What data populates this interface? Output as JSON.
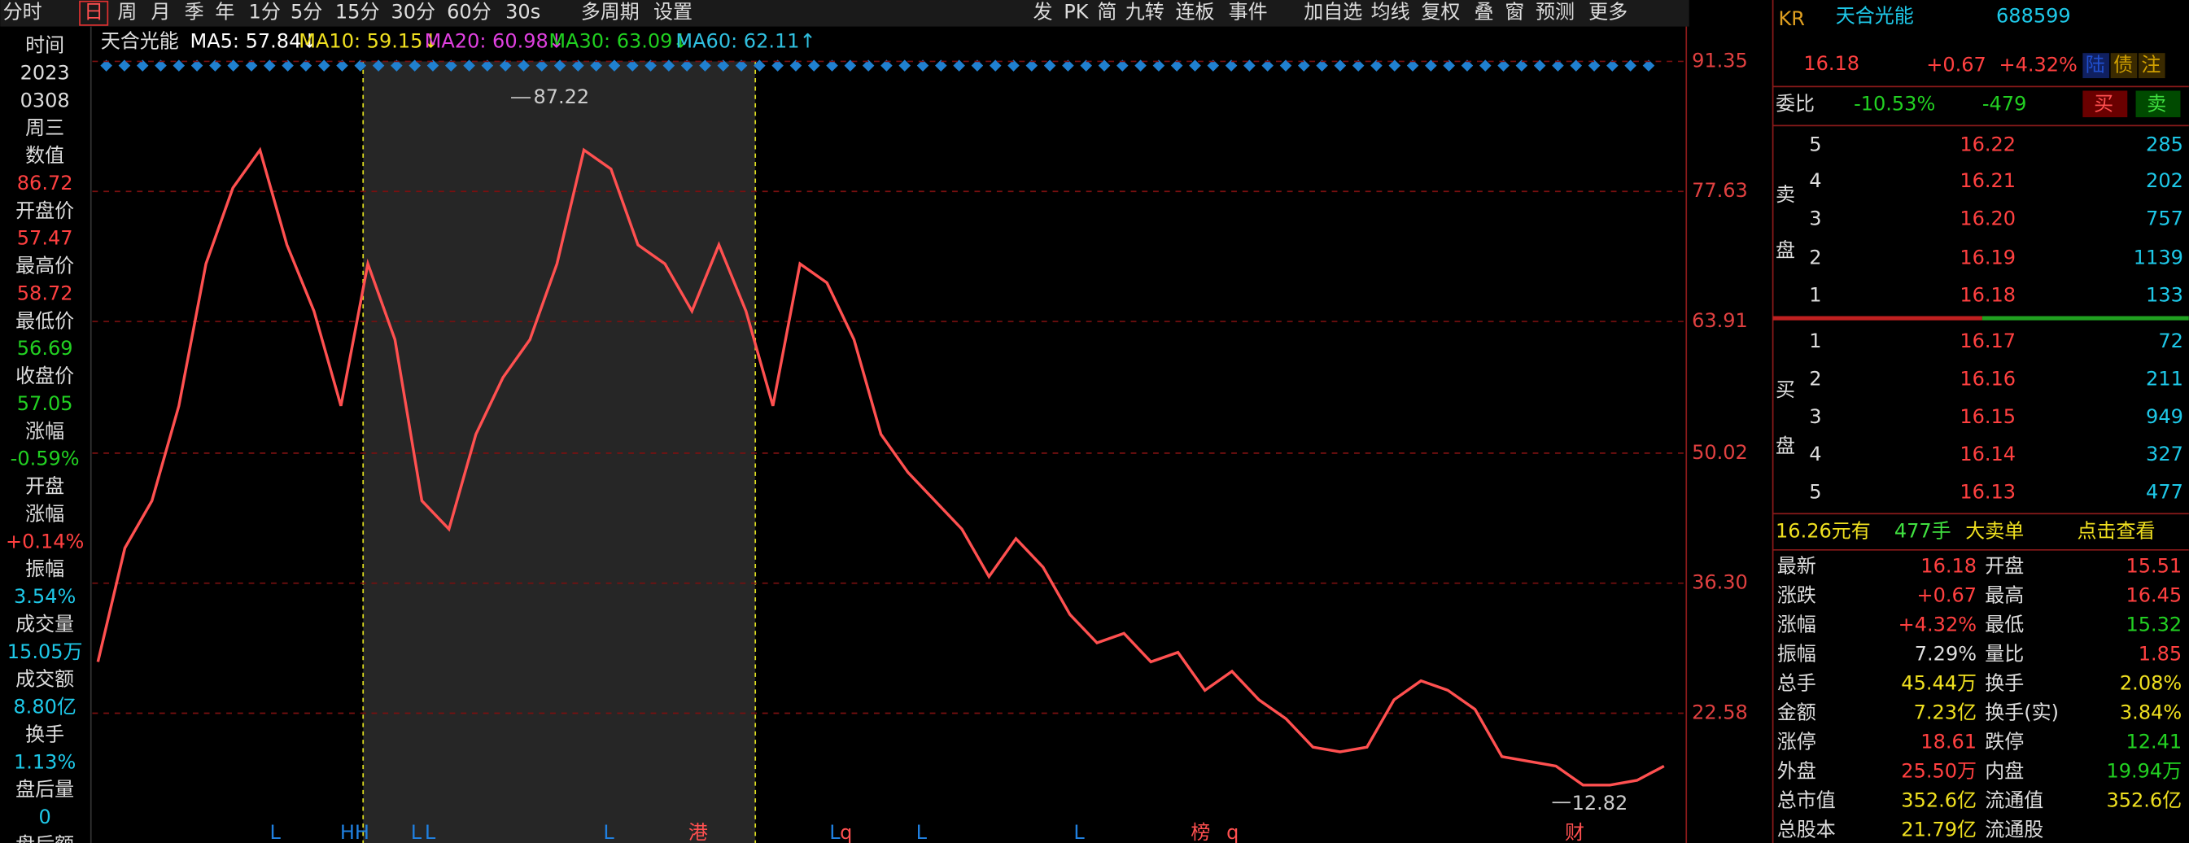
{
  "toolbar": {
    "left": [
      "分时",
      "日",
      "周",
      "月",
      "季",
      "年",
      "1分",
      "5分",
      "15分",
      "30分",
      "60分",
      "30s",
      "多周期",
      "设置"
    ],
    "right": [
      "发",
      "PK",
      "简",
      "九转",
      "连板",
      "事件",
      "加自选",
      "均线",
      "复权",
      "叠",
      "窗",
      "预测",
      "更多"
    ]
  },
  "info": [
    {
      "text": "时间",
      "color": "#ddd"
    },
    {
      "text": "2023",
      "color": "#ddd"
    },
    {
      "text": "0308",
      "color": "#ddd"
    },
    {
      "text": "周三",
      "color": "#ddd"
    },
    {
      "text": "数值",
      "color": "#ddd"
    },
    {
      "text": "86.72",
      "color": "#ff4040"
    },
    {
      "text": "开盘价",
      "color": "#ddd"
    },
    {
      "text": "57.47",
      "color": "#ff4040"
    },
    {
      "text": "最高价",
      "color": "#ddd"
    },
    {
      "text": "58.72",
      "color": "#ff4040"
    },
    {
      "text": "最低价",
      "color": "#ddd"
    },
    {
      "text": "56.69",
      "color": "#22d022"
    },
    {
      "text": "收盘价",
      "color": "#ddd"
    },
    {
      "text": "57.05",
      "color": "#22d022"
    },
    {
      "text": "涨幅",
      "color": "#ddd"
    },
    {
      "text": "-0.59%",
      "color": "#22d022"
    },
    {
      "text": "开盘",
      "color": "#ddd"
    },
    {
      "text": "涨幅",
      "color": "#ddd"
    },
    {
      "text": "+0.14%",
      "color": "#ff4040"
    },
    {
      "text": "振幅",
      "color": "#ddd"
    },
    {
      "text": "3.54%",
      "color": "#1ec8e8"
    },
    {
      "text": "成交量",
      "color": "#ddd"
    },
    {
      "text": "15.05万",
      "color": "#1ec8e8"
    },
    {
      "text": "成交额",
      "color": "#ddd"
    },
    {
      "text": "8.80亿",
      "color": "#1ec8e8"
    },
    {
      "text": "换手",
      "color": "#ddd"
    },
    {
      "text": "1.13%",
      "color": "#1ec8e8"
    },
    {
      "text": "盘后量",
      "color": "#ddd"
    },
    {
      "text": "0",
      "color": "#1ec8e8"
    },
    {
      "text": "盘后额",
      "color": "#ddd"
    }
  ],
  "chart": {
    "stock": "天合光能",
    "ma": [
      {
        "text": "MA5: 57.84↓",
        "color": "#ffffff"
      },
      {
        "text": "MA10: 59.15↓",
        "color": "#f0e020"
      },
      {
        "text": "MA20: 60.98↓",
        "color": "#e040e0"
      },
      {
        "text": "MA30: 63.09↓",
        "color": "#20d020"
      },
      {
        "text": "MA60: 62.11↑",
        "color": "#30c0e0"
      }
    ],
    "ylim": [
      10.95,
      94.88
    ],
    "yticks": [
      91.35,
      77.63,
      63.91,
      50.02,
      {
        "value": 36.3,
        "label": "36.30"
      },
      22.58
    ],
    "values": [
      28,
      40,
      45,
      55,
      70,
      78,
      82,
      72,
      65,
      55,
      70,
      62,
      45,
      42,
      52,
      58,
      62,
      70,
      82,
      80,
      72,
      70,
      65,
      72,
      65,
      55,
      70,
      68,
      62,
      52,
      48,
      45,
      42,
      37,
      41,
      38,
      33,
      30,
      31,
      28,
      29,
      25,
      27,
      24,
      22,
      19,
      18.5,
      19,
      24,
      26,
      25,
      23,
      18,
      17.5,
      17,
      15,
      15,
      15.5,
      17
    ],
    "color": "#ff5050",
    "high": "87.22",
    "low": "12.82",
    "markers": [
      "L",
      "HH",
      "L",
      "L",
      "L",
      "港",
      "L",
      "q",
      "L",
      "L",
      "榜",
      "q",
      "财"
    ]
  },
  "quote": {
    "kr": "KR",
    "name": "天合光能",
    "code": "688599",
    "price": "16.18",
    "change": "+0.67",
    "pct": "+4.32%",
    "tags": [
      "陆",
      "债",
      "注"
    ],
    "wb_label": "委比",
    "wb": "-10.53%",
    "wc": "-479",
    "buy": "买",
    "sell": "卖",
    "ask_label": [
      "卖",
      "盘"
    ],
    "bid_label": [
      "买",
      "盘"
    ],
    "asks": [
      [
        "5",
        "16.22",
        "285"
      ],
      [
        "4",
        "16.21",
        "202"
      ],
      [
        "3",
        "16.20",
        "757"
      ],
      [
        "2",
        "16.19",
        "1139"
      ],
      [
        "1",
        "16.18",
        "133"
      ]
    ],
    "bids": [
      [
        "1",
        "16.17",
        "72"
      ],
      [
        "2",
        "16.16",
        "211"
      ],
      [
        "3",
        "16.15",
        "949"
      ],
      [
        "4",
        "16.14",
        "327"
      ],
      [
        "5",
        "16.13",
        "477"
      ]
    ],
    "bigorder": [
      "16.26元有",
      "477手",
      "大卖单",
      "点击查看"
    ],
    "stats": [
      [
        "最新",
        "16.18",
        "开盘",
        "15.51"
      ],
      [
        "涨跌",
        "+0.67",
        "最高",
        "16.45"
      ],
      [
        "涨幅",
        "+4.32%",
        "最低",
        "15.32"
      ],
      [
        "振幅",
        "7.29%",
        "量比",
        "1.85"
      ],
      [
        "总手",
        "45.44万",
        "换手",
        "2.08%"
      ],
      [
        "金额",
        "7.23亿",
        "换手(实)",
        "3.84%"
      ],
      [
        "涨停",
        "18.61",
        "跌停",
        "12.41"
      ],
      [
        "外盘",
        "25.50万",
        "内盘",
        "19.94万"
      ],
      [
        "总市值",
        "352.6亿",
        "流通值",
        "352.6亿"
      ],
      [
        "总股本",
        "21.79亿",
        "流通股",
        ""
      ]
    ]
  }
}
